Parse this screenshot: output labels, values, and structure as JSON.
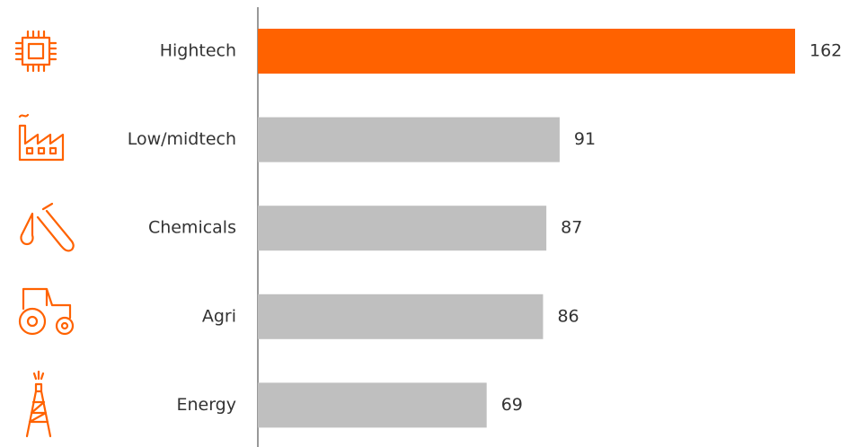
{
  "chart_data": {
    "type": "bar",
    "orientation": "horizontal",
    "categories": [
      "Hightech",
      "Low/midtech",
      "Chemicals",
      "Agri",
      "Energy"
    ],
    "values": [
      162,
      91,
      87,
      86,
      69
    ],
    "colors": [
      "#ff6200",
      "#bfbfbf",
      "#bfbfbf",
      "#bfbfbf",
      "#bfbfbf"
    ]
  }
}
